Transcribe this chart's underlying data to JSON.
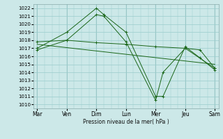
{
  "background_color": "#cce8e8",
  "grid_color": "#99cccc",
  "line_color": "#1a6618",
  "ylabel_text": "Pression niveau de la mer( hPa )",
  "ylim": [
    1009.5,
    1022.5
  ],
  "yticks": [
    1010,
    1011,
    1012,
    1013,
    1014,
    1015,
    1016,
    1017,
    1018,
    1019,
    1020,
    1021,
    1022
  ],
  "x_labels": [
    "Mar",
    "Ven",
    "Dim",
    "Lun",
    "Mer",
    "Jeu",
    "Sam"
  ],
  "x_tick_pos": [
    0,
    16,
    32,
    48,
    64,
    80,
    96
  ],
  "series": [
    {
      "x": [
        0,
        16,
        32,
        36,
        48,
        64,
        68,
        80,
        88,
        96
      ],
      "y": [
        1017.0,
        1019.0,
        1022.0,
        1021.2,
        1019.0,
        1011.0,
        1011.0,
        1017.2,
        1015.8,
        1014.3
      ],
      "marker": "+"
    },
    {
      "x": [
        0,
        16,
        32,
        36,
        48,
        64,
        68,
        80,
        88,
        96
      ],
      "y": [
        1016.8,
        1018.0,
        1021.2,
        1021.0,
        1017.8,
        1010.5,
        1014.0,
        1017.0,
        1016.8,
        1014.5
      ],
      "marker": "+"
    },
    {
      "x": [
        0,
        16,
        32,
        48,
        64,
        80,
        96
      ],
      "y": [
        1017.8,
        1018.0,
        1017.7,
        1017.5,
        1017.2,
        1017.0,
        1014.5
      ],
      "marker": "+"
    },
    {
      "x": [
        0,
        96
      ],
      "y": [
        1017.5,
        1015.0
      ],
      "marker": null
    }
  ]
}
